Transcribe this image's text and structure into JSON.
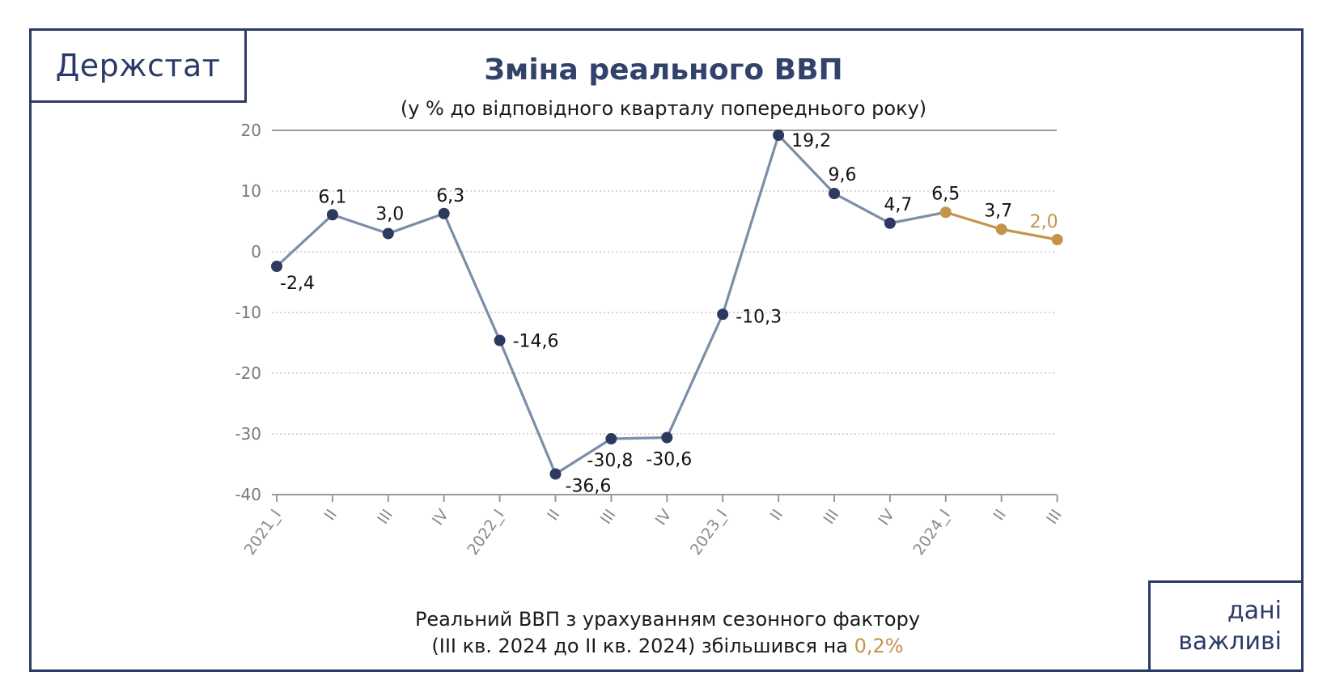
{
  "brand": {
    "name": "Держстат"
  },
  "tagline": {
    "line1": "дані",
    "line2": "важливі"
  },
  "colors": {
    "frame": "#2b3a67",
    "series_main": "#7b8ea8",
    "marker_main": "#2b3a5e",
    "series_forecast": "#c4944a",
    "grid": "#bdbdbd",
    "accent_text": "#c4944a"
  },
  "footnote": {
    "line1": "Реальний ВВП з урахуванням сезонного фактору",
    "line2_prefix": "(III кв. 2024 до II кв. 2024) збільшився на ",
    "line2_value": "0,2%"
  },
  "chart_data": {
    "type": "line",
    "title": "Зміна реального ВВП",
    "subtitle": "(у % до відповідного кварталу попереднього року)",
    "categories": [
      "2021_I",
      "II",
      "III",
      "IV",
      "2022_I",
      "II",
      "III",
      "IV",
      "2023_I",
      "II",
      "III",
      "IV",
      "2024_I",
      "II",
      "III"
    ],
    "values": [
      -2.4,
      6.1,
      3.0,
      6.3,
      -14.6,
      -36.6,
      -30.8,
      -30.6,
      -10.3,
      19.2,
      9.6,
      4.7,
      6.5,
      3.7,
      2.0
    ],
    "value_labels": [
      "-2,4",
      "6,1",
      "3,0",
      "6,3",
      "-14,6",
      "-36,6",
      "-30,8",
      "-30,6",
      "-10,3",
      "19,2",
      "9,6",
      "4,7",
      "6,5",
      "3,7",
      "2,0"
    ],
    "highlight_from_index": 12,
    "ylim": [
      -40,
      20
    ],
    "yticks": [
      20,
      10,
      0,
      -10,
      -20,
      -30,
      -40
    ],
    "ytick_labels": [
      "20",
      "10",
      "0",
      "-10",
      "-20",
      "-30",
      "-40"
    ],
    "grid": "horizontal-dotted",
    "legend": "none"
  }
}
